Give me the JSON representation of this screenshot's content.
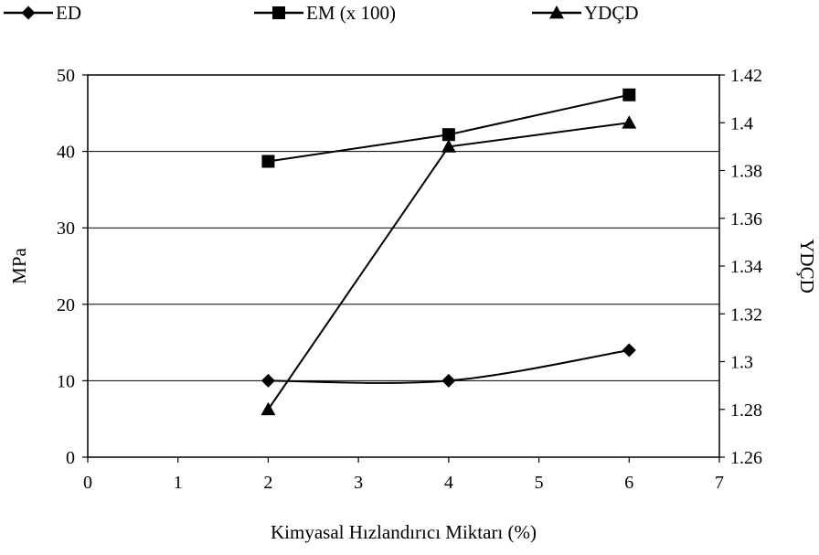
{
  "chart_data": {
    "type": "line",
    "xlabel": "Kimyasal Hızlandırıcı Miktarı (%)",
    "ylabel": "MPa",
    "y2label": "YDÇD",
    "xlim": [
      0,
      7
    ],
    "ylim": [
      0,
      50
    ],
    "y2lim": [
      1.26,
      1.42
    ],
    "xticks": [
      "0",
      "1",
      "2",
      "3",
      "4",
      "5",
      "6",
      "7"
    ],
    "yticks": [
      "0",
      "10",
      "20",
      "30",
      "40",
      "50"
    ],
    "y2ticks": [
      "1.26",
      "1.28",
      "1.3",
      "1.32",
      "1.34",
      "1.36",
      "1.38",
      "1.4",
      "1.42"
    ],
    "grid": true,
    "legend_position": "top",
    "series": [
      {
        "name": "ED",
        "axis": "left",
        "marker": "diamond",
        "smooth": true,
        "x": [
          2,
          4,
          6
        ],
        "y": [
          10,
          10,
          14
        ]
      },
      {
        "name": "EM (x 100)",
        "axis": "left",
        "marker": "square",
        "smooth": false,
        "x": [
          2,
          4,
          6
        ],
        "y": [
          38.7,
          42.2,
          47.4
        ]
      },
      {
        "name": "YDÇD",
        "axis": "right",
        "marker": "triangle",
        "smooth": false,
        "x": [
          2,
          4,
          6
        ],
        "y": [
          1.28,
          1.39,
          1.4
        ]
      }
    ]
  }
}
